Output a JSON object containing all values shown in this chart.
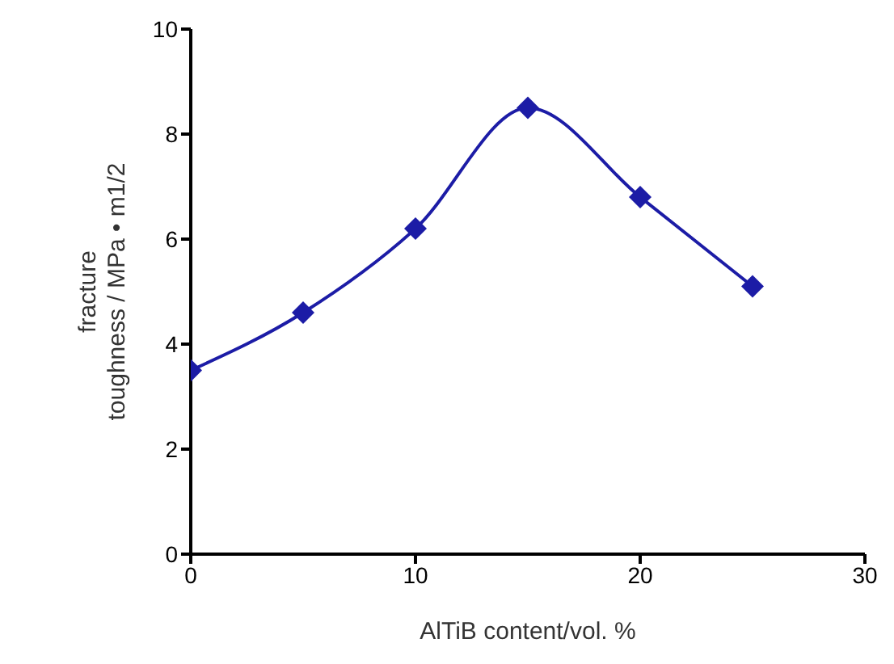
{
  "chart_data": {
    "type": "line",
    "xlabel": "AlTiB content/vol. %",
    "ylabel": "fracture\ntoughness / MPa • m1/2",
    "x": [
      0,
      5,
      10,
      15,
      20,
      25
    ],
    "series": [
      {
        "color": "#1c1ca6",
        "values": [
          3.5,
          4.6,
          6.2,
          8.5,
          6.8,
          5.1
        ]
      }
    ],
    "xlim": [
      0,
      30
    ],
    "xticks": [
      0,
      10,
      20,
      30
    ],
    "ylim": [
      0,
      10
    ],
    "yticks": [
      0,
      2,
      4,
      6,
      8,
      10
    ],
    "marker": "diamond",
    "line_style": "solid",
    "grid": false,
    "legend": false
  }
}
